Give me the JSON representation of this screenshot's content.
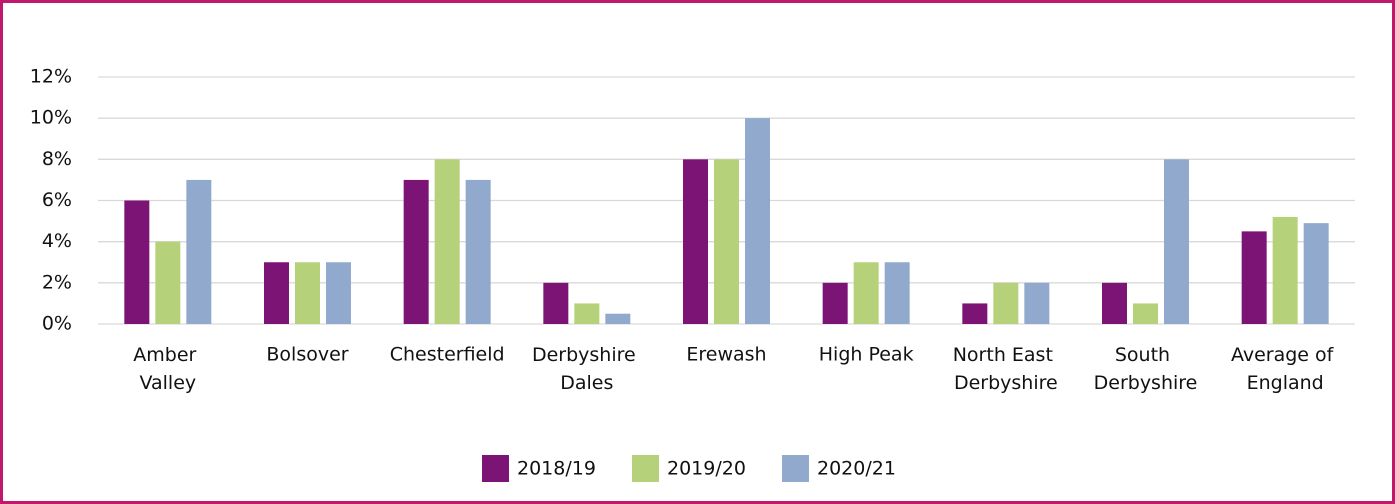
{
  "chart_data": {
    "type": "bar",
    "categories": [
      "Amber Valley",
      "Bolsover",
      "Chesterfield",
      "Derbyshire Dales",
      "Erewash",
      "High Peak",
      "North East Derbyshire",
      "South Derbyshire",
      "Average of England"
    ],
    "series": [
      {
        "name": "2018/19",
        "color": "#7b1474",
        "values": [
          6,
          3,
          7,
          2,
          8,
          2,
          1,
          2,
          4.5
        ]
      },
      {
        "name": "2019/20",
        "color": "#b5d27a",
        "values": [
          4,
          3,
          8,
          1,
          8,
          3,
          2,
          1,
          5.2
        ]
      },
      {
        "name": "2020/21",
        "color": "#91a9cc",
        "values": [
          7,
          3,
          7,
          0.5,
          10,
          3,
          2,
          8,
          4.9
        ]
      }
    ],
    "ylim": [
      0,
      12
    ],
    "yticks": [
      {
        "value": 0,
        "label": "0%"
      },
      {
        "value": 2,
        "label": "2%"
      },
      {
        "value": 4,
        "label": "4%"
      },
      {
        "value": 6,
        "label": "6%"
      },
      {
        "value": 8,
        "label": "8%"
      },
      {
        "value": 10,
        "label": "10%"
      },
      {
        "value": 12,
        "label": "12%"
      }
    ],
    "grid": true,
    "legend": "bottom"
  }
}
